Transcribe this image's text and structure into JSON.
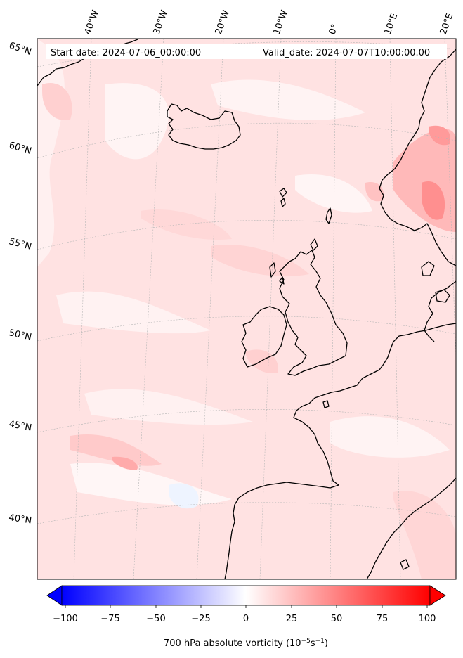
{
  "header": {
    "start_date": "Start date: 2024-07-06_00:00:00",
    "valid_date": "Valid_date: 2024-07-07T10:00:00.00"
  },
  "axes": {
    "longitude_labels": [
      "40°W",
      "30°W",
      "20°W",
      "10°W",
      "0°",
      "10°E",
      "20°E"
    ],
    "latitude_labels": [
      "65°N",
      "60°N",
      "55°N",
      "50°N",
      "45°N",
      "40°N"
    ]
  },
  "colorbar": {
    "ticks": [
      "−100",
      "−75",
      "−50",
      "−25",
      "0",
      "25",
      "50",
      "75",
      "100"
    ],
    "label_main": "700 hPa absolute vorticity (10",
    "label_exp1": "−5",
    "label_mid": "s",
    "label_exp2": "−1",
    "label_end": ")",
    "min_color": "#0000ff",
    "mid_color": "#ffffff",
    "max_color": "#ff0000"
  },
  "map": {
    "field_base_color": "#ffe2e2",
    "coastline_color": "#000000",
    "gridline_color": "#b0b0b0"
  }
}
